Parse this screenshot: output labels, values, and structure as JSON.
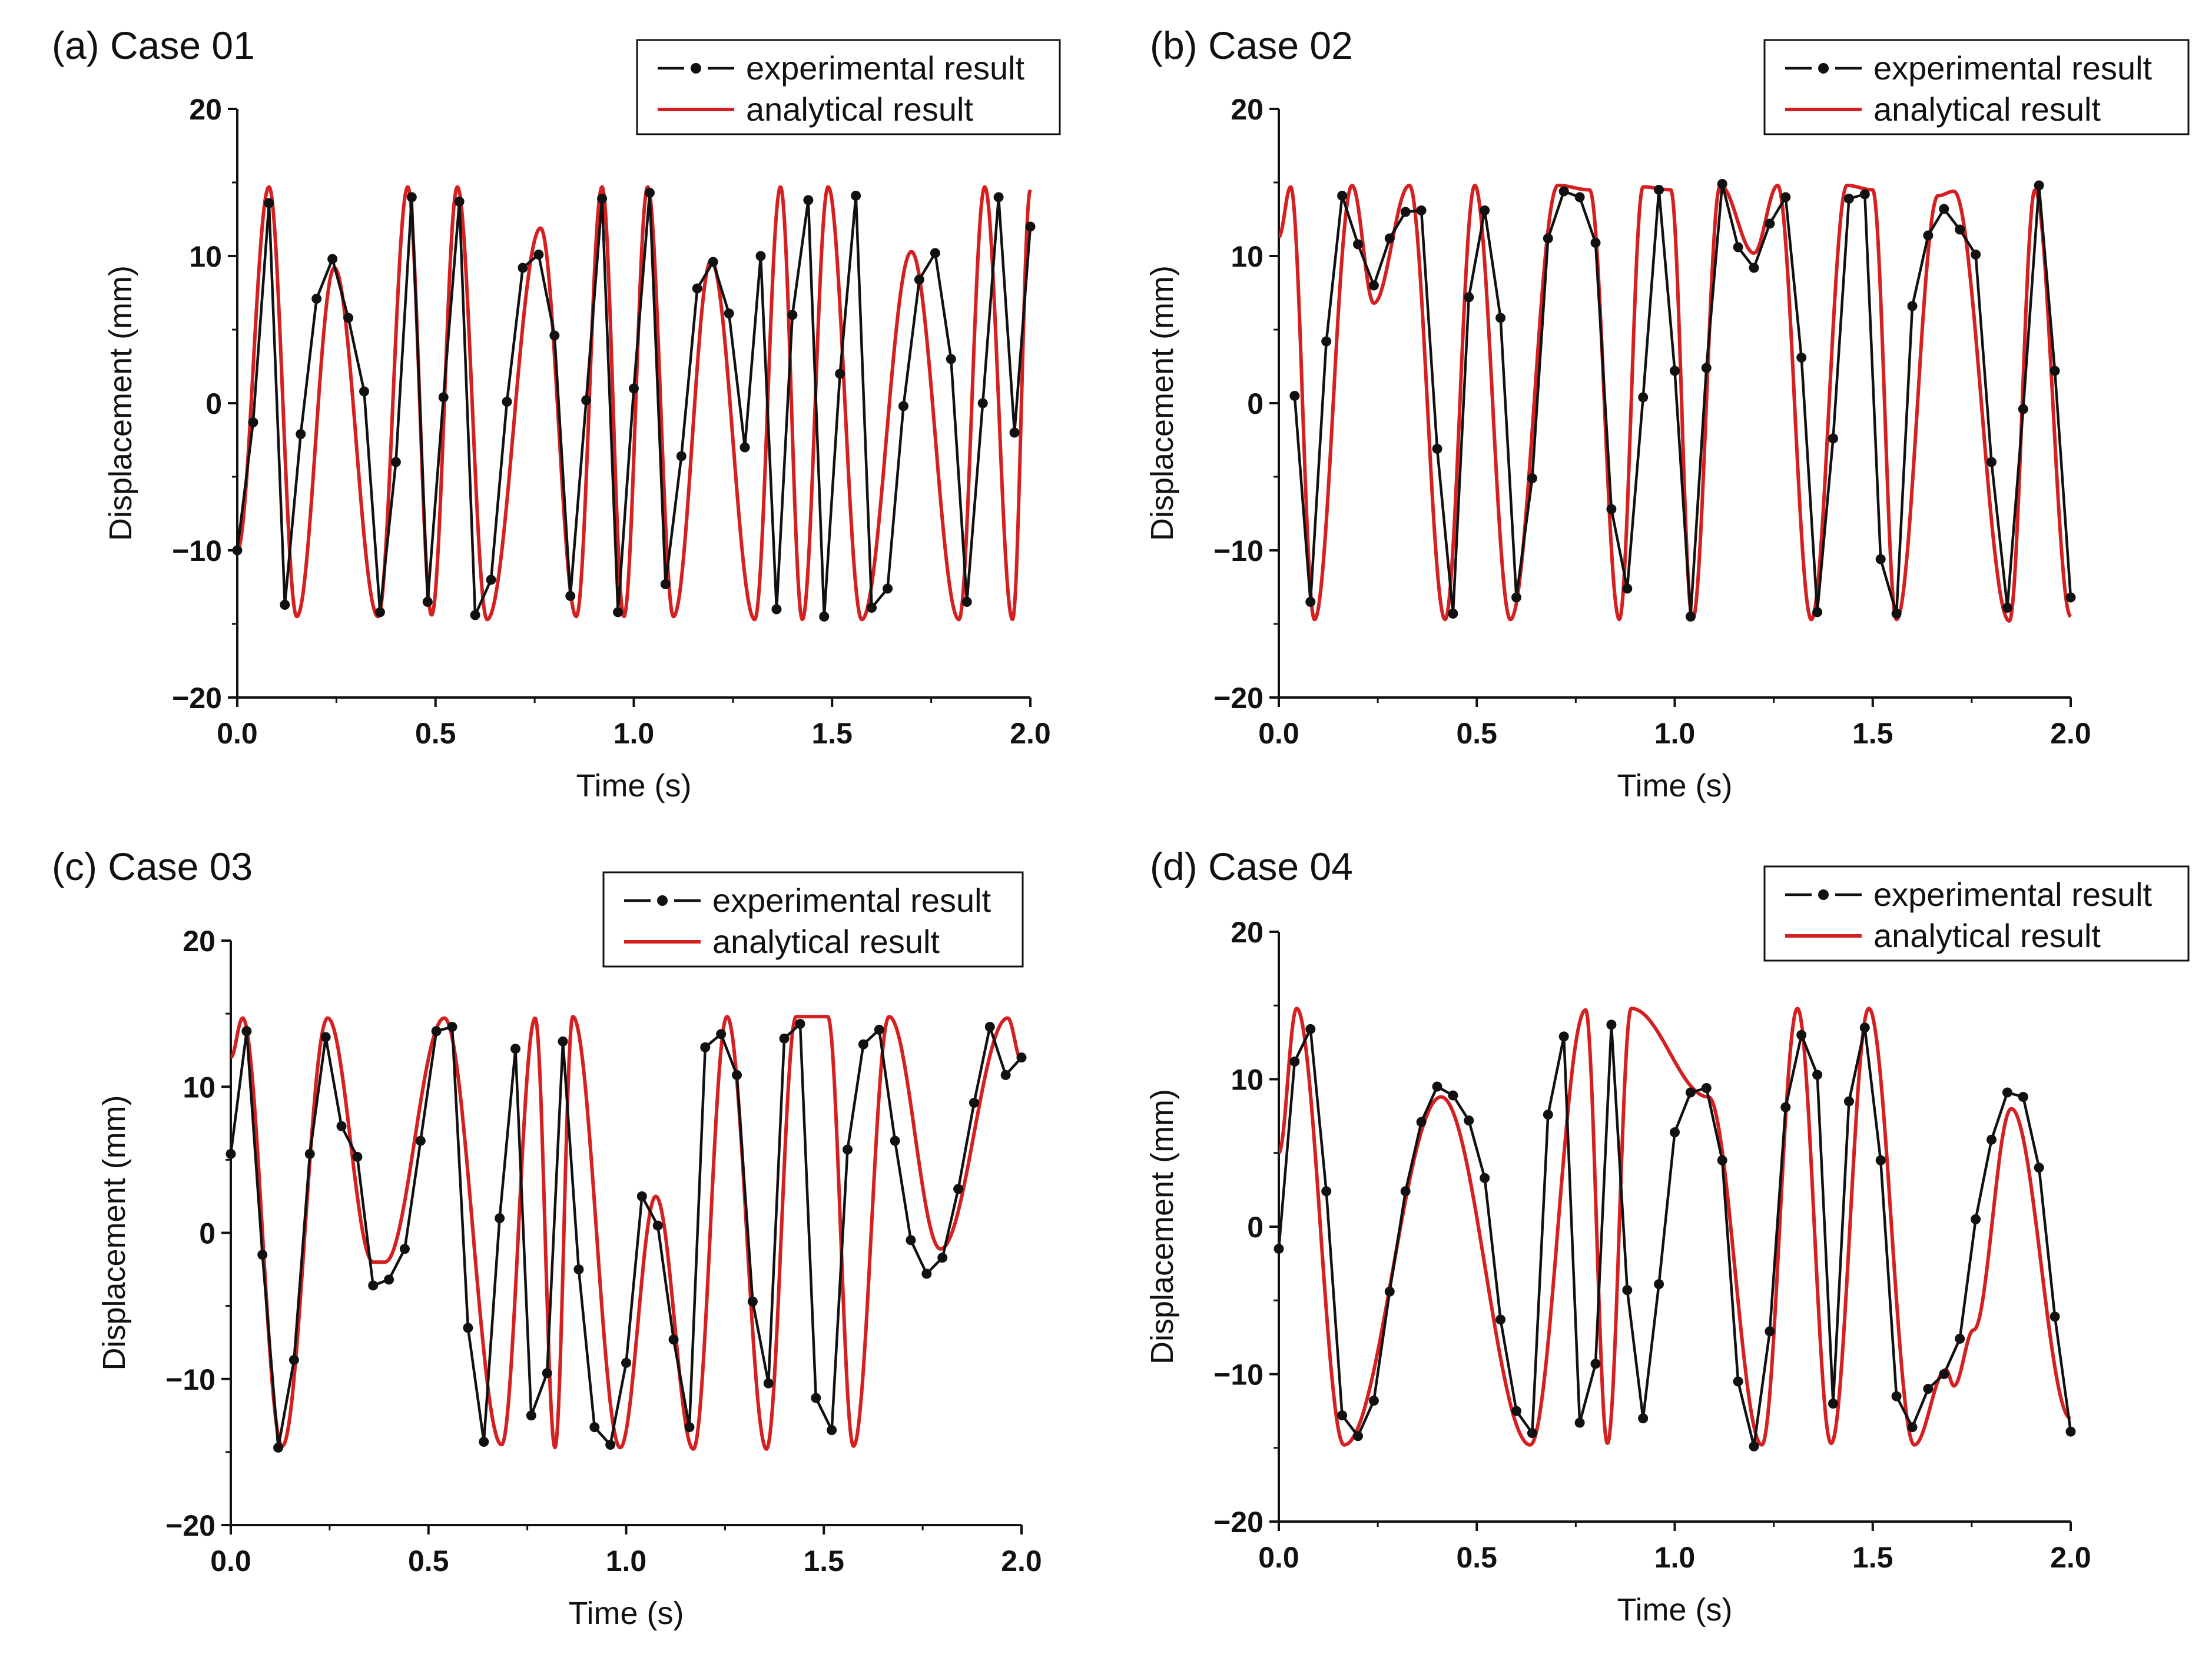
{
  "chart_data": [
    {
      "type": "line",
      "title": "(a) Case 01",
      "xlabel": "Time (s)",
      "ylabel": "Displacement (mm)",
      "xlim": [
        0,
        2
      ],
      "ylim": [
        -20,
        20
      ],
      "xticks": [
        0,
        0.5,
        1,
        1.5,
        2
      ],
      "xticklabels": [
        "0.0",
        "0.5",
        "1.0",
        "1.5",
        "2.0"
      ],
      "yticks": [
        -20,
        -10,
        0,
        10,
        20
      ],
      "yticklabels": [
        "−20",
        "−10",
        "0",
        "10",
        "20"
      ],
      "legend": "top-right",
      "series": [
        {
          "name": "experimental result",
          "color": "#111111",
          "marker": "circle",
          "x": [
            0,
            0.04,
            0.08,
            0.12,
            0.16,
            0.2,
            0.24,
            0.28,
            0.32,
            0.36,
            0.4,
            0.44,
            0.48,
            0.52,
            0.56,
            0.6,
            0.64,
            0.68,
            0.72,
            0.76,
            0.8,
            0.84,
            0.88,
            0.92,
            0.96,
            1,
            1.04,
            1.08,
            1.12,
            1.16,
            1.2,
            1.24,
            1.28,
            1.32,
            1.36,
            1.4,
            1.44,
            1.48,
            1.52,
            1.56,
            1.6,
            1.64,
            1.68,
            1.72,
            1.76,
            1.8,
            1.84,
            1.88,
            1.92,
            1.96,
            2.0
          ],
          "y": [
            -10,
            -1.3,
            13.6,
            -13.7,
            -2.1,
            7.1,
            9.8,
            5.8,
            0.8,
            -14.2,
            -4,
            14,
            -13.5,
            0.4,
            13.7,
            -14.4,
            -12,
            0.1,
            9.2,
            10.1,
            4.6,
            -13.1,
            0.2,
            13.9,
            -14.2,
            1,
            14.3,
            -12.3,
            -3.6,
            7.8,
            9.6,
            6.1,
            -3,
            10,
            -14,
            6,
            13.8,
            -14.5,
            2,
            14.1,
            -13.9,
            -12.6,
            -0.2,
            8.4,
            10.2,
            3,
            -13.5,
            0,
            14,
            -2,
            12
          ]
        },
        {
          "name": "analytical result",
          "color": "#d42020",
          "marker": "none",
          "amp": 14.7,
          "anchors_x": [
            0,
            0.08,
            0.15,
            0.245,
            0.355,
            0.43,
            0.49,
            0.555,
            0.63,
            0.765,
            0.855,
            0.92,
            0.975,
            1.035,
            1.1,
            1.195,
            1.305,
            1.37,
            1.425,
            1.49,
            1.575,
            1.7,
            1.82,
            1.885,
            1.955,
            2.0
          ],
          "anchors_y": [
            -10,
            14.7,
            -14.5,
            9.2,
            -14.5,
            14.7,
            -14.4,
            14.7,
            -14.7,
            11.9,
            -14.5,
            14.7,
            -14.5,
            14.7,
            -14.5,
            9.7,
            -14.7,
            14.7,
            -14.7,
            14.7,
            -14.7,
            10.3,
            -14.7,
            14.7,
            -14.7,
            14.5
          ]
        }
      ]
    },
    {
      "type": "line",
      "title": "(b) Case 02",
      "xlabel": "Time (s)",
      "ylabel": "Displacement (mm)",
      "xlim": [
        0,
        2
      ],
      "ylim": [
        -20,
        20
      ],
      "xticks": [
        0,
        0.5,
        1,
        1.5,
        2
      ],
      "xticklabels": [
        "0.0",
        "0.5",
        "1.0",
        "1.5",
        "2.0"
      ],
      "yticks": [
        -20,
        -10,
        0,
        10,
        20
      ],
      "yticklabels": [
        "−20",
        "−10",
        "0",
        "10",
        "20"
      ],
      "legend": "top-right",
      "series": [
        {
          "name": "experimental result",
          "color": "#111111",
          "marker": "circle",
          "x": [
            0.04,
            0.08,
            0.12,
            0.16,
            0.2,
            0.24,
            0.28,
            0.32,
            0.36,
            0.4,
            0.44,
            0.48,
            0.52,
            0.56,
            0.6,
            0.64,
            0.68,
            0.72,
            0.76,
            0.8,
            0.84,
            0.88,
            0.92,
            0.96,
            1.0,
            1.04,
            1.08,
            1.12,
            1.16,
            1.2,
            1.24,
            1.28,
            1.32,
            1.36,
            1.4,
            1.44,
            1.48,
            1.52,
            1.56,
            1.6,
            1.64,
            1.68,
            1.72,
            1.76,
            1.8,
            1.84,
            1.88,
            1.92,
            1.96,
            2.0
          ],
          "y": [
            0.5,
            -13.5,
            4.2,
            14.1,
            10.8,
            8,
            11.2,
            13,
            13.1,
            -3.1,
            -14.3,
            7.2,
            13.1,
            5.8,
            -13.2,
            -5.1,
            11.2,
            14.4,
            14,
            10.9,
            -7.2,
            -12.6,
            0.4,
            14.5,
            2.2,
            -14.5,
            2.4,
            14.9,
            10.6,
            9.2,
            12.2,
            14,
            3.1,
            -14.2,
            -2.4,
            13.9,
            14.2,
            -10.6,
            -14.3,
            6.6,
            11.4,
            13.2,
            11.8,
            10.1,
            -4,
            -13.9,
            -0.4,
            14.8,
            2.2,
            -13.2
          ]
        },
        {
          "name": "analytical result",
          "color": "#d42020",
          "marker": "none",
          "amp": 14.7,
          "anchors_x": [
            0,
            0.03,
            0.09,
            0.185,
            0.24,
            0.33,
            0.42,
            0.495,
            0.585,
            0.705,
            0.785,
            0.86,
            0.92,
            0.99,
            1.045,
            1.115,
            1.2,
            1.26,
            1.345,
            1.435,
            1.5,
            1.56,
            1.665,
            1.705,
            1.845,
            1.91,
            2.0
          ],
          "anchors_y": [
            11.3,
            14.7,
            -14.7,
            14.8,
            6.8,
            14.8,
            -14.7,
            14.8,
            -14.7,
            14.8,
            14.5,
            -14.7,
            14.7,
            14.5,
            -14.7,
            14.8,
            10.2,
            14.8,
            -14.7,
            14.8,
            14.5,
            -14.7,
            14.1,
            14.4,
            -14.8,
            14.5,
            -14.5
          ]
        }
      ]
    },
    {
      "type": "line",
      "title": "(c) Case 03",
      "xlabel": "Time (s)",
      "ylabel": "Displacement (mm)",
      "xlim": [
        0,
        2
      ],
      "ylim": [
        -20,
        20
      ],
      "xticks": [
        0,
        0.5,
        1,
        1.5,
        2
      ],
      "xticklabels": [
        "0.0",
        "0.5",
        "1.0",
        "1.5",
        "2.0"
      ],
      "yticks": [
        -20,
        -10,
        0,
        10,
        20
      ],
      "yticklabels": [
        "−20",
        "−10",
        "0",
        "10",
        "20"
      ],
      "legend": "top-right",
      "series": [
        {
          "name": "experimental result",
          "color": "#111111",
          "marker": "circle",
          "x": [
            0,
            0.04,
            0.08,
            0.12,
            0.16,
            0.2,
            0.24,
            0.28,
            0.32,
            0.36,
            0.4,
            0.44,
            0.48,
            0.52,
            0.56,
            0.6,
            0.64,
            0.68,
            0.72,
            0.76,
            0.8,
            0.84,
            0.88,
            0.92,
            0.96,
            1.0,
            1.04,
            1.08,
            1.12,
            1.16,
            1.2,
            1.24,
            1.28,
            1.32,
            1.36,
            1.4,
            1.44,
            1.48,
            1.52,
            1.56,
            1.6,
            1.64,
            1.68,
            1.72,
            1.76,
            1.8,
            1.84,
            1.88,
            1.92,
            1.96,
            2.0
          ],
          "y": [
            5.4,
            13.8,
            -1.5,
            -14.7,
            -8.7,
            5.4,
            13.4,
            7.3,
            5.2,
            -3.6,
            -3.2,
            -1.1,
            6.3,
            13.8,
            14.1,
            -6.5,
            -14.3,
            1,
            12.6,
            -12.5,
            -9.6,
            13.1,
            -2.5,
            -13.3,
            -14.5,
            -8.9,
            2.5,
            0.5,
            -7.3,
            -13.3,
            12.7,
            13.6,
            10.8,
            -4.7,
            -10.3,
            13.3,
            14.3,
            -11.3,
            -13.5,
            5.7,
            12.9,
            13.9,
            6.3,
            -0.5,
            -2.8,
            -1.7,
            3,
            8.9,
            14.1,
            10.8,
            12
          ]
        },
        {
          "name": "analytical result",
          "color": "#d42020",
          "marker": "none",
          "amp": 14.7,
          "anchors_x": [
            0,
            0.03,
            0.13,
            0.245,
            0.36,
            0.39,
            0.54,
            0.685,
            0.77,
            0.82,
            0.865,
            0.985,
            1.075,
            1.17,
            1.255,
            1.355,
            1.43,
            1.51,
            1.575,
            1.665,
            1.795,
            1.965,
            2.0
          ],
          "anchors_y": [
            12,
            14.7,
            -14.6,
            14.7,
            -2,
            -2,
            14.7,
            -14.5,
            14.7,
            -14.7,
            14.8,
            -14.7,
            2.5,
            -14.8,
            14.8,
            -14.8,
            14.8,
            14.8,
            -14.6,
            14.8,
            -1.1,
            14.7,
            11.8
          ]
        }
      ]
    },
    {
      "type": "line",
      "title": "(d) Case 04",
      "xlabel": "Time (s)",
      "ylabel": "Displacement (mm)",
      "xlim": [
        0,
        2
      ],
      "ylim": [
        -20,
        20
      ],
      "xticks": [
        0,
        0.5,
        1,
        1.5,
        2
      ],
      "xticklabels": [
        "0.0",
        "0.5",
        "1.0",
        "1.5",
        "2.0"
      ],
      "yticks": [
        -20,
        -10,
        0,
        10,
        20
      ],
      "yticklabels": [
        "−20",
        "−10",
        "0",
        "10",
        "20"
      ],
      "legend": "top-right",
      "series": [
        {
          "name": "experimental result",
          "color": "#111111",
          "marker": "circle",
          "x": [
            0,
            0.04,
            0.08,
            0.12,
            0.16,
            0.2,
            0.24,
            0.28,
            0.32,
            0.36,
            0.4,
            0.44,
            0.48,
            0.52,
            0.56,
            0.6,
            0.64,
            0.68,
            0.72,
            0.76,
            0.8,
            0.84,
            0.88,
            0.92,
            0.96,
            1.0,
            1.04,
            1.08,
            1.12,
            1.16,
            1.2,
            1.24,
            1.28,
            1.32,
            1.36,
            1.4,
            1.44,
            1.48,
            1.52,
            1.56,
            1.6,
            1.64,
            1.68,
            1.72,
            1.76,
            1.8,
            1.84,
            1.88,
            1.92,
            1.96,
            2.0
          ],
          "y": [
            -1.5,
            11.2,
            13.4,
            2.4,
            -12.8,
            -14.2,
            -11.8,
            -4.4,
            2.4,
            7.1,
            9.5,
            8.9,
            7.2,
            3.3,
            -6.3,
            -12.5,
            -14,
            7.6,
            12.9,
            -13.3,
            -9.3,
            13.7,
            -4.3,
            -13,
            -3.9,
            6.4,
            9.1,
            9.4,
            4.5,
            -10.5,
            -14.9,
            -7.1,
            8.1,
            13,
            10.3,
            -12,
            8.5,
            13.5,
            4.5,
            -11.5,
            -13.6,
            -11,
            -10,
            -7.6,
            0.5,
            5.9,
            9.1,
            8.8,
            4,
            -6.1,
            -13.9
          ]
        },
        {
          "name": "analytical result",
          "color": "#d42020",
          "marker": "none",
          "amp": 14.7,
          "anchors_x": [
            0,
            0.045,
            0.165,
            0.41,
            0.635,
            0.775,
            0.83,
            0.89,
            1.085,
            1.22,
            1.31,
            1.395,
            1.49,
            1.605,
            1.685,
            1.705,
            1.755,
            1.85,
            2.0
          ],
          "anchors_y": [
            5,
            14.8,
            -14.8,
            8.8,
            -14.8,
            14.7,
            -14.7,
            14.8,
            8.8,
            -14.8,
            14.8,
            -14.7,
            14.8,
            -14.8,
            -9.7,
            -10.8,
            -7,
            8,
            -13
          ]
        }
      ]
    }
  ],
  "legend_labels": {
    "experimental": "experimental result",
    "analytical": "analytical result"
  }
}
